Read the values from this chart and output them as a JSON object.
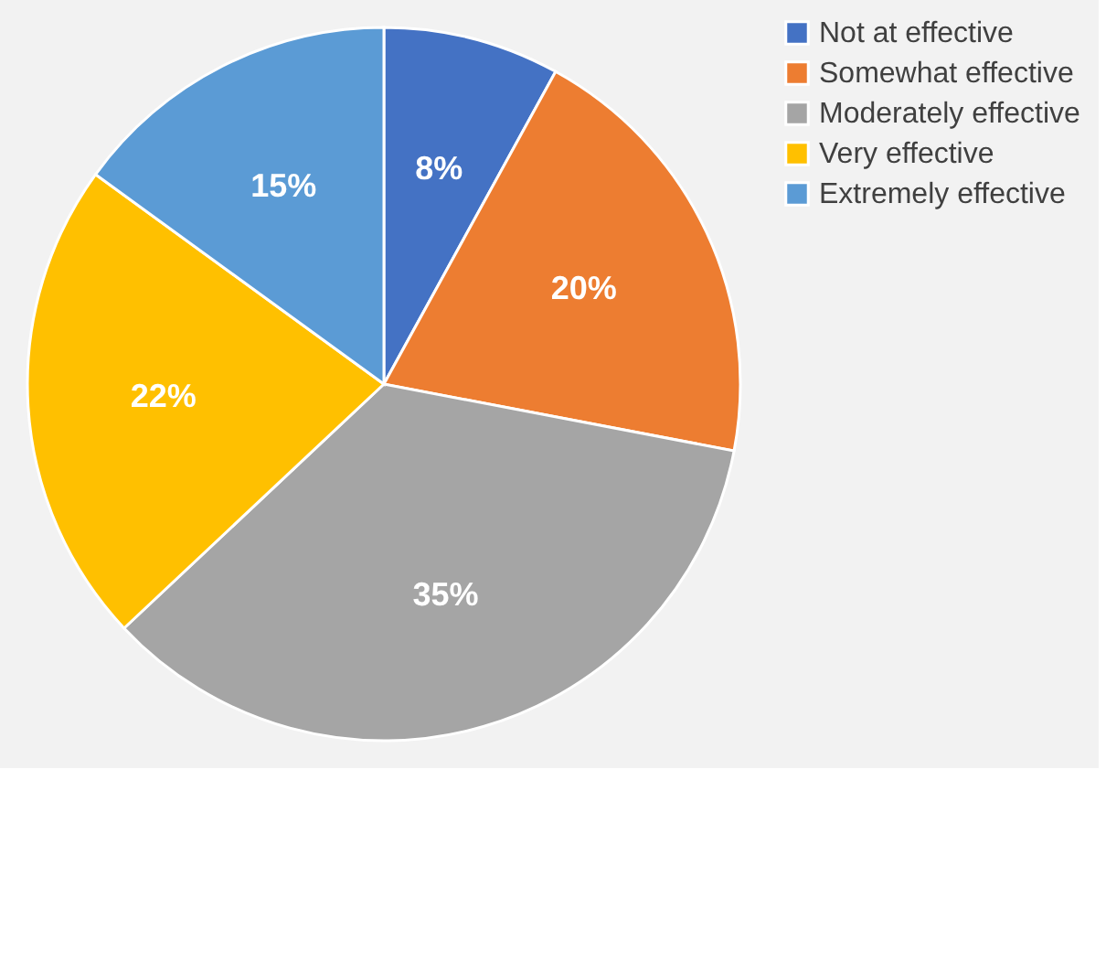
{
  "chart_data": {
    "type": "pie",
    "categories": [
      "Not at effective",
      "Somewhat effective",
      "Moderately effective",
      "Very effective",
      "Extremely effective"
    ],
    "values": [
      8,
      20,
      35,
      22,
      15
    ],
    "colors": [
      "#4472c4",
      "#ed7d31",
      "#a5a5a5",
      "#ffc000",
      "#5b9bd5"
    ],
    "value_labels": [
      "8%",
      "20%",
      "35%",
      "22%",
      "15%"
    ],
    "legend": "right"
  }
}
